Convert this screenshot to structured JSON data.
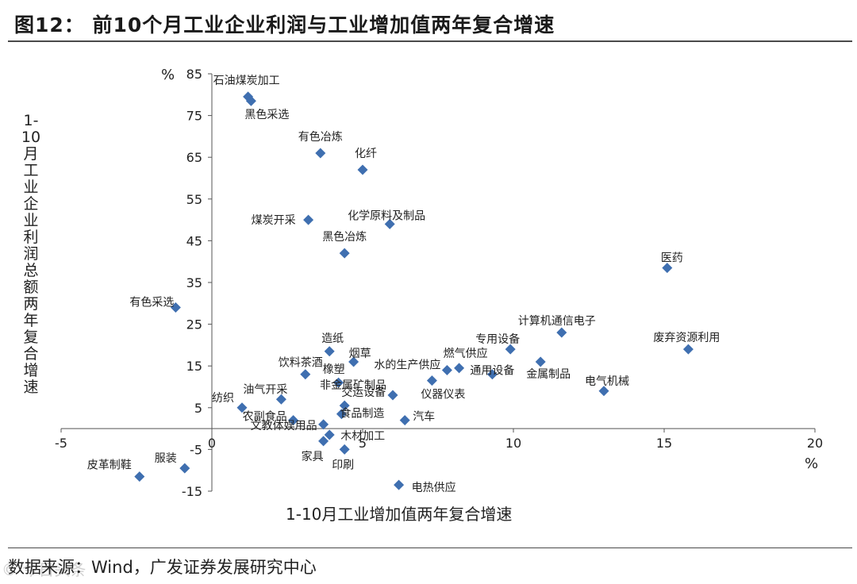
{
  "title": "图12：  前10个月工业企业利润与工业增加值两年复合增速",
  "source": "数据来源：Wind，广发证券发展研究中心",
  "watermark": "© 今日头条",
  "chart_data": {
    "type": "scatter",
    "xlabel": "1-10月工业增加值两年复合增速",
    "ylabel": "1-10月工业企业利润总额两年复合增速",
    "x_unit": "%",
    "y_unit": "%",
    "xlim": [
      -5,
      20
    ],
    "ylim": [
      -15,
      85
    ],
    "x_ticks": [
      -5,
      0,
      5,
      10,
      15,
      20
    ],
    "y_ticks": [
      -15,
      -5,
      5,
      15,
      25,
      35,
      45,
      55,
      65,
      75,
      85
    ],
    "marker_color": "#3f6fb0",
    "points": [
      {
        "label": "石油煤炭加工",
        "x": 1.2,
        "y": 79.5
      },
      {
        "label": "黑色采选",
        "x": 1.3,
        "y": 78.5
      },
      {
        "label": "有色冶炼",
        "x": 3.6,
        "y": 66.0
      },
      {
        "label": "化纤",
        "x": 5.0,
        "y": 62.0
      },
      {
        "label": "煤炭开采",
        "x": 3.2,
        "y": 50.0
      },
      {
        "label": "化学原料及制品",
        "x": 5.9,
        "y": 49.0
      },
      {
        "label": "黑色冶炼",
        "x": 4.4,
        "y": 42.0
      },
      {
        "label": "医药",
        "x": 15.1,
        "y": 38.5
      },
      {
        "label": "有色采选",
        "x": -1.2,
        "y": 29.0
      },
      {
        "label": "计算机通信电子",
        "x": 11.6,
        "y": 23.0
      },
      {
        "label": "废弃资源利用",
        "x": 15.8,
        "y": 19.0
      },
      {
        "label": "专用设备",
        "x": 9.9,
        "y": 19.0
      },
      {
        "label": "造纸",
        "x": 3.9,
        "y": 18.5
      },
      {
        "label": "烟草",
        "x": 4.7,
        "y": 16.0
      },
      {
        "label": "金属制品",
        "x": 10.9,
        "y": 16.0
      },
      {
        "label": "燃气供应",
        "x": 8.2,
        "y": 14.5
      },
      {
        "label": "水的生产供应",
        "x": 7.8,
        "y": 14.0
      },
      {
        "label": "通用设备",
        "x": 9.3,
        "y": 13.0
      },
      {
        "label": "饮料茶酒",
        "x": 3.1,
        "y": 13.0
      },
      {
        "label": "仪器仪表",
        "x": 7.3,
        "y": 11.5
      },
      {
        "label": "橡塑",
        "x": 4.2,
        "y": 11.0
      },
      {
        "label": "电气机械",
        "x": 13.0,
        "y": 9.0
      },
      {
        "label": "非金属矿制品",
        "x": 6.0,
        "y": 8.0
      },
      {
        "label": "油气开采",
        "x": 2.3,
        "y": 7.0
      },
      {
        "label": "交运设备",
        "x": 4.4,
        "y": 5.5
      },
      {
        "label": "纺织",
        "x": 1.0,
        "y": 5.0
      },
      {
        "label": "食品制造",
        "x": 4.3,
        "y": 3.5
      },
      {
        "label": "汽车",
        "x": 6.4,
        "y": 2.0
      },
      {
        "label": "农副食品",
        "x": 2.7,
        "y": 2.0
      },
      {
        "label": "文教体娱用品",
        "x": 3.7,
        "y": 1.0
      },
      {
        "label": "木材加工",
        "x": 3.9,
        "y": -1.5
      },
      {
        "label": "家具",
        "x": 3.7,
        "y": -3.0
      },
      {
        "label": "印刷",
        "x": 4.4,
        "y": -5.0
      },
      {
        "label": "电热供应",
        "x": 6.2,
        "y": -13.5
      },
      {
        "label": "服装",
        "x": -0.9,
        "y": -9.5
      },
      {
        "label": "皮革制鞋",
        "x": -2.4,
        "y": -11.5
      }
    ]
  }
}
